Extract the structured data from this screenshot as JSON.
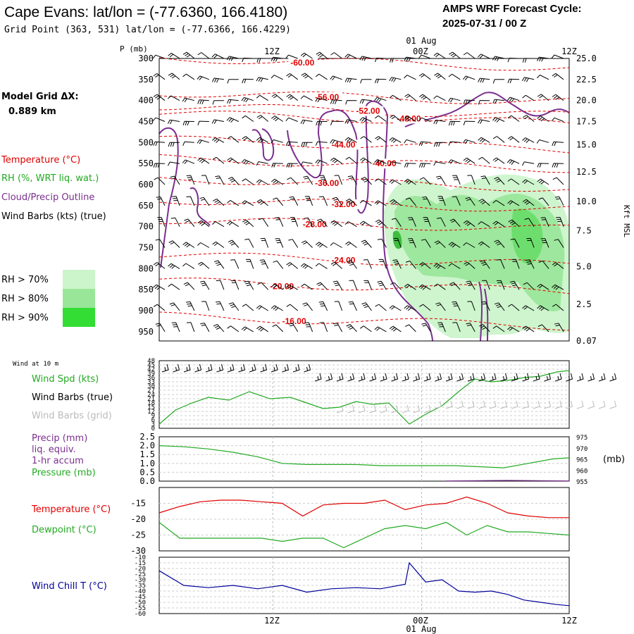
{
  "header": {
    "title": "Cape Evans:  lat/lon = (-77.6360, 166.4180)",
    "subtitle": "Grid Point (363, 531) lat/lon = (-77.6366, 166.4229)",
    "cycle_line1": "AMPS WRF Forecast Cycle:",
    "cycle_line2": "2025-07-31 / 00  Z"
  },
  "legend": {
    "grid_label": "Model Grid ΔX:",
    "grid_value": "0.889 km",
    "temperature": "Temperature (°C)",
    "rh": "RH (%, WRT liq. wat.)",
    "cloud": "Cloud/Precip Outline",
    "wind": "Wind Barbs (kts) (true)",
    "rh70": "RH > 70%",
    "rh80": "RH > 80%",
    "rh90": "RH > 90%"
  },
  "colors": {
    "temperature": "#e00000",
    "rh_text": "#22aa22",
    "cloud": "#7a2f8f",
    "rh70": "#ccf5cc",
    "rh80": "#99e699",
    "rh90": "#33dd33",
    "grid_barbs": "#bbbbbb",
    "windchill": "#000099",
    "green": "#22aa22"
  },
  "chart_data": [
    {
      "type": "heatmap",
      "name": "cross-section",
      "ylabel_left": "P (mb)",
      "ylabel_right": "Kft MSL",
      "x_top_ticks": [
        "12Z",
        "00Z",
        "12Z"
      ],
      "x_top_date": "01 Aug",
      "pressure_levels": [
        300,
        350,
        400,
        450,
        500,
        550,
        600,
        650,
        700,
        750,
        800,
        850,
        900,
        950
      ],
      "height_labels": [
        "25.0",
        "22.5",
        "20.0",
        "17.5",
        "15.0",
        "12.5",
        "10.0",
        "7.5",
        "5.0",
        "2.5",
        "0.07"
      ],
      "height_label_pressures": [
        300,
        350,
        400,
        450,
        505,
        570,
        640,
        710,
        795,
        885,
        972
      ],
      "temperature_contours": [
        {
          "label": "-60.00",
          "p": 310,
          "t": 0.32
        },
        {
          "label": "-56.00",
          "p": 392,
          "t": 0.38
        },
        {
          "label": "-52.00",
          "p": 425,
          "t": 0.48
        },
        {
          "label": "-48.00",
          "p": 443,
          "t": 0.58
        },
        {
          "label": "-44.00",
          "p": 505,
          "t": 0.42
        },
        {
          "label": "-40.00",
          "p": 550,
          "t": 0.52
        },
        {
          "label": "-36.00",
          "p": 597,
          "t": 0.38
        },
        {
          "label": "-32.00",
          "p": 647,
          "t": 0.42
        },
        {
          "label": "-28.00",
          "p": 695,
          "t": 0.35
        },
        {
          "label": "-24.00",
          "p": 780,
          "t": 0.42
        },
        {
          "label": "-20.00",
          "p": 842,
          "t": 0.27
        },
        {
          "label": "-16.00",
          "p": 925,
          "t": 0.3
        }
      ]
    },
    {
      "type": "line",
      "name": "wind-panel",
      "panel_title": "Wind at 10 m",
      "series_labels": [
        "Wind Spd (kts)",
        "Wind Barbs (true)",
        "Wind Barbs (grid)"
      ],
      "ylim": [
        0,
        48
      ],
      "yticks": [
        0,
        3,
        6,
        9,
        12,
        15,
        18,
        21,
        24,
        27,
        30,
        33,
        36,
        39,
        42,
        45,
        48
      ],
      "t": [
        0,
        0.04,
        0.08,
        0.12,
        0.17,
        0.22,
        0.27,
        0.32,
        0.36,
        0.4,
        0.44,
        0.48,
        0.52,
        0.56,
        0.61,
        0.65,
        0.69,
        0.73,
        0.77,
        0.81,
        0.85,
        0.89,
        0.93,
        0.97,
        1.0
      ],
      "speed": [
        3,
        13,
        18,
        22,
        20,
        26,
        21,
        22,
        18,
        14,
        15,
        19,
        17,
        18,
        3,
        10,
        16,
        26,
        35,
        33,
        34,
        36,
        37,
        40,
        41
      ]
    },
    {
      "type": "line",
      "name": "pressure-panel",
      "series_labels": [
        "Precip (mm)",
        "liq. equiv.",
        "1-hr accum",
        "Pressure (mb)"
      ],
      "ylim_left": [
        0,
        2.5
      ],
      "yticks_left": [
        "0.0",
        "0.5",
        "1.0",
        "1.5",
        "2.0",
        "2.5"
      ],
      "ylim_right": [
        955,
        975
      ],
      "yticks_right": [
        "955",
        "960",
        "965",
        "970",
        "975"
      ],
      "unit_right": "(mb)",
      "t": [
        0,
        0.06,
        0.12,
        0.18,
        0.24,
        0.3,
        0.36,
        0.42,
        0.48,
        0.54,
        0.6,
        0.66,
        0.72,
        0.78,
        0.84,
        0.9,
        0.96,
        1.0
      ],
      "pressure": [
        971,
        970.5,
        969.5,
        968,
        966,
        963,
        962.5,
        962.5,
        962.5,
        962,
        962,
        962,
        962,
        961.5,
        961,
        963,
        965,
        965.5
      ],
      "precip_t": [
        0.7,
        0.75,
        0.8,
        0.85,
        0.9,
        0.95,
        1.0
      ],
      "precip": [
        0.01,
        0.02,
        0.03,
        0.04,
        0.03,
        0.02,
        0.01
      ]
    },
    {
      "type": "line",
      "name": "temperature-panel",
      "series_labels": [
        "Temperature (°C)",
        "Dewpoint (°C)"
      ],
      "ylim": [
        -30,
        -10
      ],
      "yticks": [
        "-15",
        "-20",
        "-25",
        "-30"
      ],
      "t": [
        0,
        0.05,
        0.1,
        0.15,
        0.2,
        0.25,
        0.3,
        0.35,
        0.4,
        0.45,
        0.5,
        0.55,
        0.6,
        0.65,
        0.7,
        0.75,
        0.8,
        0.85,
        0.9,
        0.95,
        1.0
      ],
      "temperature": [
        -18,
        -16,
        -14.5,
        -14,
        -14,
        -14.5,
        -15,
        -19,
        -15.5,
        -15,
        -15,
        -14,
        -17,
        -15.5,
        -15,
        -13,
        -15,
        -18,
        -19,
        -19.5,
        -19.5
      ],
      "dewpoint": [
        -21,
        -26,
        -26,
        -26,
        -26,
        -26,
        -27,
        -26,
        -26,
        -29,
        -26,
        -23,
        -22,
        -23,
        -21,
        -25,
        -22,
        -24,
        -24,
        -24.5,
        -25
      ]
    },
    {
      "type": "line",
      "name": "windchill-panel",
      "series_labels": [
        "Wind Chill T (°C)"
      ],
      "ylim": [
        -60,
        -10
      ],
      "yticks": [
        "-10",
        "-15",
        "-20",
        "-25",
        "-30",
        "-35",
        "-40",
        "-45",
        "-50",
        "-55",
        "-60"
      ],
      "t": [
        0,
        0.06,
        0.12,
        0.18,
        0.24,
        0.3,
        0.36,
        0.42,
        0.48,
        0.54,
        0.6,
        0.61,
        0.65,
        0.69,
        0.73,
        0.77,
        0.81,
        0.85,
        0.89,
        0.93,
        0.97,
        1.0
      ],
      "windchill": [
        -22,
        -35,
        -37,
        -35,
        -38,
        -35,
        -41,
        -38,
        -37,
        -38,
        -34,
        -15,
        -32,
        -30,
        -40,
        -41,
        -40,
        -43,
        -48,
        -50,
        -52,
        -53
      ],
      "x_bottom_ticks": [
        "12Z",
        "00Z",
        "12Z"
      ],
      "x_bottom_date": "01 Aug"
    }
  ]
}
